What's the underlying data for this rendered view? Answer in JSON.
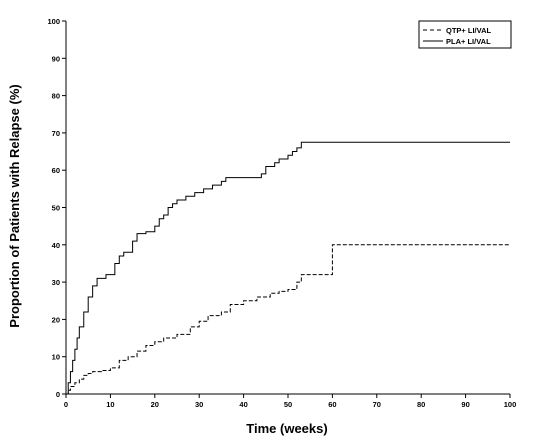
{
  "chart_data": {
    "type": "line",
    "title": "",
    "xlabel": "Time (weeks)",
    "ylabel": "Proportion of Patients with Relapse (%)",
    "xlim": [
      0,
      100
    ],
    "ylim": [
      0,
      100
    ],
    "x_ticks": [
      0,
      10,
      20,
      30,
      40,
      50,
      60,
      70,
      80,
      90,
      100
    ],
    "y_ticks": [
      0,
      10,
      20,
      30,
      40,
      50,
      60,
      70,
      80,
      90,
      100
    ],
    "grid": false,
    "legend_position": "top-right",
    "series": [
      {
        "name": "QTP+ LI/VAL",
        "style": "dashed",
        "color": "#000000",
        "points": [
          [
            0,
            0
          ],
          [
            0.5,
            1
          ],
          [
            1,
            2
          ],
          [
            2,
            3
          ],
          [
            3,
            4
          ],
          [
            4,
            5
          ],
          [
            5,
            5.5
          ],
          [
            6,
            6
          ],
          [
            8,
            6.3
          ],
          [
            10,
            7
          ],
          [
            12,
            9
          ],
          [
            14,
            10
          ],
          [
            16,
            11.5
          ],
          [
            18,
            13
          ],
          [
            20,
            14
          ],
          [
            22,
            15
          ],
          [
            25,
            16
          ],
          [
            28,
            18
          ],
          [
            30,
            19.5
          ],
          [
            32,
            21
          ],
          [
            35,
            22
          ],
          [
            37,
            24
          ],
          [
            40,
            25
          ],
          [
            43,
            26
          ],
          [
            46,
            27
          ],
          [
            48,
            27.5
          ],
          [
            50,
            28
          ],
          [
            52,
            30
          ],
          [
            53,
            32
          ],
          [
            59,
            32
          ],
          [
            60,
            40
          ],
          [
            100,
            40
          ]
        ]
      },
      {
        "name": "PLA+ LI/VAL",
        "style": "solid",
        "color": "#000000",
        "points": [
          [
            0,
            0
          ],
          [
            0.5,
            3
          ],
          [
            1,
            6
          ],
          [
            1.5,
            9
          ],
          [
            2,
            12
          ],
          [
            2.5,
            15
          ],
          [
            3,
            18
          ],
          [
            4,
            22
          ],
          [
            5,
            26
          ],
          [
            6,
            29
          ],
          [
            7,
            31
          ],
          [
            9,
            32
          ],
          [
            11,
            35
          ],
          [
            12,
            37
          ],
          [
            13,
            38
          ],
          [
            15,
            41
          ],
          [
            16,
            43
          ],
          [
            18,
            43.5
          ],
          [
            20,
            45
          ],
          [
            21,
            47
          ],
          [
            22,
            48
          ],
          [
            23,
            50
          ],
          [
            24,
            51
          ],
          [
            25,
            52
          ],
          [
            27,
            53
          ],
          [
            29,
            54
          ],
          [
            31,
            55
          ],
          [
            33,
            56
          ],
          [
            35,
            57
          ],
          [
            36,
            58
          ],
          [
            43,
            58
          ],
          [
            44,
            59
          ],
          [
            45,
            61
          ],
          [
            47,
            62
          ],
          [
            48,
            63
          ],
          [
            50,
            64
          ],
          [
            51,
            65
          ],
          [
            52,
            66
          ],
          [
            53,
            67.5
          ],
          [
            100,
            67.5
          ]
        ]
      }
    ]
  }
}
